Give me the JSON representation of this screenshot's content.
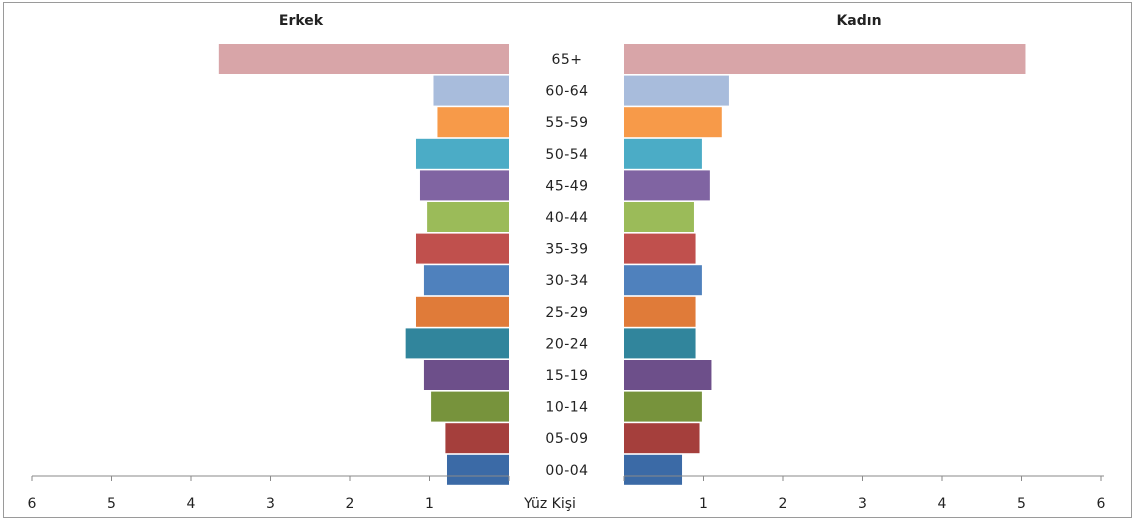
{
  "chart_data": {
    "type": "bar",
    "orientation": "horizontal-population-pyramid",
    "categories": [
      "65+",
      "60-64",
      "55-59",
      "50-54",
      "45-49",
      "40-44",
      "35-39",
      "30-34",
      "25-29",
      "20-24",
      "15-19",
      "10-14",
      "05-09",
      "00-04"
    ],
    "series": [
      {
        "name": "Erkek",
        "values": [
          3.65,
          0.95,
          0.9,
          1.17,
          1.12,
          1.03,
          1.17,
          1.07,
          1.17,
          1.3,
          1.07,
          0.98,
          0.8,
          0.78
        ]
      },
      {
        "name": "Kadın",
        "values": [
          5.05,
          1.32,
          1.23,
          0.98,
          1.08,
          0.88,
          0.9,
          0.98,
          0.9,
          0.9,
          1.1,
          0.98,
          0.95,
          0.73
        ]
      }
    ],
    "bar_colors": [
      "#d8a5a8",
      "#a8bcdc",
      "#f79a49",
      "#4bacc6",
      "#8064a2",
      "#9bbb59",
      "#c0504d",
      "#4f81bd",
      "#e07b39",
      "#31859c",
      "#6d4f8a",
      "#77933c",
      "#a53f3c",
      "#3b6aa6"
    ],
    "left_title": "Erkek",
    "right_title": "Kadın",
    "xlabel": "Yüz Kişi",
    "left_ticks": [
      "6",
      "5",
      "4",
      "3",
      "2",
      "1"
    ],
    "right_ticks": [
      "1",
      "2",
      "3",
      "4",
      "5",
      "6"
    ],
    "xlim": [
      0,
      6
    ],
    "grid": false,
    "legend": "none"
  }
}
